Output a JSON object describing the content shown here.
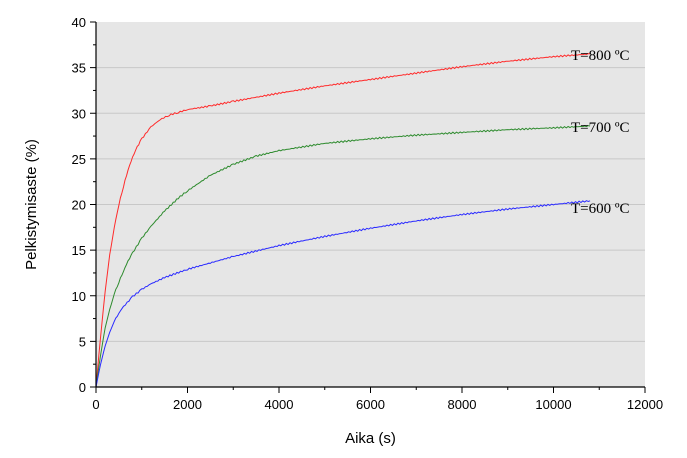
{
  "chart_data": {
    "type": "line",
    "title": "",
    "xlabel": "Aika (s)",
    "ylabel": "Pelkistymisaste (%)",
    "xlim": [
      0,
      12000
    ],
    "ylim": [
      0,
      40
    ],
    "x_ticks": [
      "0",
      "2000",
      "4000",
      "6000",
      "8000",
      "10000",
      "12000"
    ],
    "y_ticks": [
      "0",
      "5",
      "10",
      "15",
      "20",
      "25",
      "30",
      "35",
      "40"
    ],
    "grid": "horizontal",
    "legend": "none",
    "plot_background": "#e6e6e6",
    "series": [
      {
        "name": "T=800 ºC",
        "color": "#ff2a2a",
        "x": [
          0,
          100,
          200,
          300,
          400,
          500,
          600,
          700,
          800,
          900,
          1000,
          1200,
          1400,
          1600,
          1800,
          2000,
          2500,
          3000,
          4000,
          5000,
          6000,
          7000,
          8000,
          9000,
          10000,
          10800
        ],
        "y": [
          0,
          5.5,
          10.5,
          14.5,
          17.5,
          20,
          22,
          23.8,
          25.2,
          26.3,
          27.2,
          28.5,
          29.3,
          29.8,
          30.1,
          30.4,
          30.8,
          31.3,
          32.2,
          33.0,
          33.7,
          34.4,
          35.1,
          35.7,
          36.2,
          36.5
        ]
      },
      {
        "name": "T=700 ºC",
        "color": "#2e8b2e",
        "x": [
          0,
          100,
          200,
          300,
          400,
          500,
          600,
          700,
          800,
          1000,
          1200,
          1500,
          1800,
          2000,
          2500,
          3000,
          3500,
          4000,
          5000,
          6000,
          7000,
          8000,
          9000,
          10000,
          10800
        ],
        "y": [
          0,
          3.5,
          6.5,
          8.5,
          10.2,
          11.5,
          12.7,
          13.8,
          14.7,
          16.3,
          17.6,
          19.3,
          20.7,
          21.5,
          23.2,
          24.4,
          25.3,
          25.9,
          26.7,
          27.2,
          27.6,
          27.9,
          28.2,
          28.4,
          28.6
        ]
      },
      {
        "name": "T=600 ºC",
        "color": "#2a2aff",
        "x": [
          0,
          100,
          200,
          300,
          400,
          500,
          600,
          800,
          1000,
          1200,
          1500,
          2000,
          2500,
          3000,
          4000,
          5000,
          6000,
          7000,
          8000,
          9000,
          10000,
          10800
        ],
        "y": [
          0,
          2.5,
          4.5,
          6.0,
          7.2,
          8.1,
          8.8,
          9.9,
          10.7,
          11.3,
          12.0,
          12.9,
          13.6,
          14.3,
          15.5,
          16.5,
          17.4,
          18.2,
          18.9,
          19.5,
          20.0,
          20.4
        ]
      }
    ],
    "annotations": [
      "T=800 ºC",
      "T=700 ºC",
      "T=600 ºC"
    ]
  }
}
